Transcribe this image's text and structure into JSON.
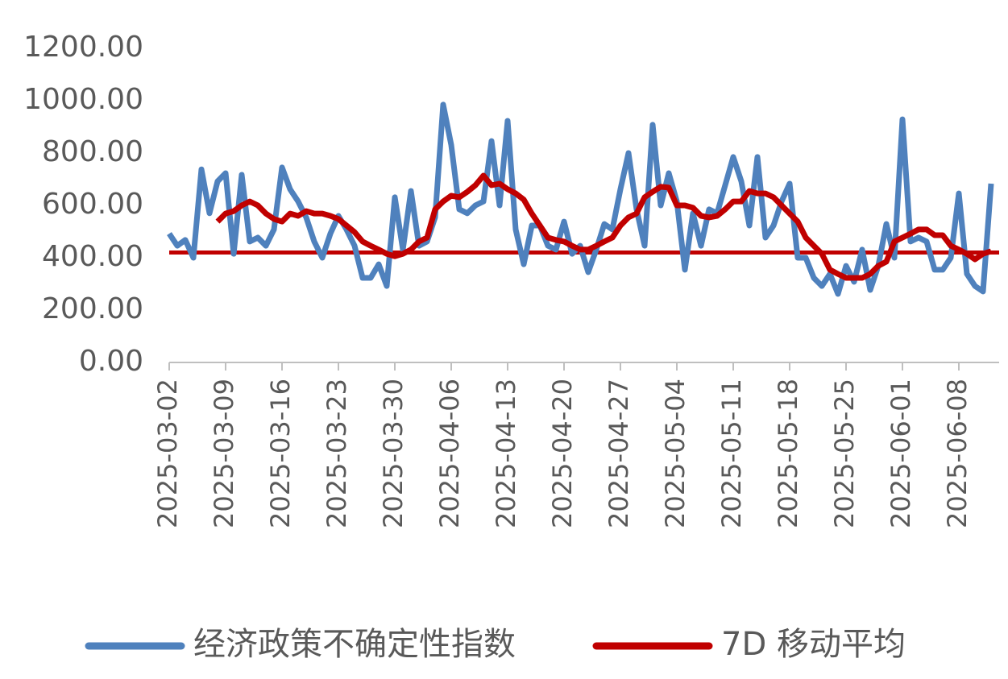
{
  "chart_data": {
    "type": "line",
    "x": [
      "2025-03-02",
      "2025-03-03",
      "2025-03-04",
      "2025-03-05",
      "2025-03-06",
      "2025-03-07",
      "2025-03-08",
      "2025-03-09",
      "2025-03-10",
      "2025-03-11",
      "2025-03-12",
      "2025-03-13",
      "2025-03-14",
      "2025-03-15",
      "2025-03-16",
      "2025-03-17",
      "2025-03-18",
      "2025-03-19",
      "2025-03-20",
      "2025-03-21",
      "2025-03-22",
      "2025-03-23",
      "2025-03-24",
      "2025-03-25",
      "2025-03-26",
      "2025-03-27",
      "2025-03-28",
      "2025-03-29",
      "2025-03-30",
      "2025-03-31",
      "2025-04-01",
      "2025-04-02",
      "2025-04-03",
      "2025-04-04",
      "2025-04-05",
      "2025-04-06",
      "2025-04-07",
      "2025-04-08",
      "2025-04-09",
      "2025-04-10",
      "2025-04-11",
      "2025-04-12",
      "2025-04-13",
      "2025-04-14",
      "2025-04-15",
      "2025-04-16",
      "2025-04-17",
      "2025-04-18",
      "2025-04-19",
      "2025-04-20",
      "2025-04-21",
      "2025-04-22",
      "2025-04-23",
      "2025-04-24",
      "2025-04-25",
      "2025-04-26",
      "2025-04-27",
      "2025-04-28",
      "2025-04-29",
      "2025-04-30",
      "2025-05-01",
      "2025-05-02",
      "2025-05-03",
      "2025-05-04",
      "2025-05-05",
      "2025-05-06",
      "2025-05-07",
      "2025-05-08",
      "2025-05-09",
      "2025-05-10",
      "2025-05-11",
      "2025-05-12",
      "2025-05-13",
      "2025-05-14",
      "2025-05-15",
      "2025-05-16",
      "2025-05-17",
      "2025-05-18",
      "2025-05-19",
      "2025-05-20",
      "2025-05-21",
      "2025-05-22",
      "2025-05-23",
      "2025-05-24",
      "2025-05-25",
      "2025-05-26",
      "2025-05-27",
      "2025-05-28",
      "2025-05-29",
      "2025-05-30",
      "2025-05-31",
      "2025-06-01",
      "2025-06-02",
      "2025-06-03",
      "2025-06-04",
      "2025-06-05",
      "2025-06-06",
      "2025-06-07",
      "2025-06-08",
      "2025-06-09",
      "2025-06-10",
      "2025-06-11",
      "2025-06-12"
    ],
    "series": [
      {
        "name": "经济政策不确定性指数",
        "color": "#4f81bd",
        "values": [
          492,
          446,
          468,
          400,
          738,
          570,
          692,
          723,
          415,
          717,
          462,
          477,
          446,
          508,
          745,
          662,
          615,
          554,
          462,
          400,
          492,
          560,
          508,
          446,
          323,
          323,
          375,
          292,
          631,
          431,
          655,
          446,
          462,
          554,
          985,
          831,
          585,
          570,
          600,
          615,
          846,
          600,
          923,
          508,
          375,
          523,
          523,
          446,
          431,
          538,
          415,
          446,
          345,
          431,
          529,
          508,
          662,
          800,
          585,
          446,
          908,
          600,
          723,
          615,
          354,
          570,
          446,
          585,
          570,
          677,
          785,
          692,
          523,
          785,
          477,
          523,
          615,
          683,
          400,
          400,
          323,
          292,
          338,
          262,
          369,
          308,
          431,
          277,
          369,
          529,
          400,
          929,
          462,
          477,
          462,
          354,
          354,
          400,
          646,
          338,
          292,
          271,
          683
        ]
      },
      {
        "name": "7D 移动平均",
        "color": "#c00000",
        "values": [
          null,
          null,
          null,
          null,
          null,
          null,
          538,
          569,
          578,
          600,
          615,
          600,
          569,
          548,
          538,
          569,
          560,
          578,
          569,
          569,
          560,
          548,
          523,
          498,
          462,
          446,
          431,
          415,
          406,
          415,
          431,
          462,
          477,
          585,
          615,
          637,
          631,
          652,
          677,
          714,
          677,
          683,
          662,
          646,
          622,
          569,
          523,
          477,
          468,
          462,
          446,
          431,
          431,
          446,
          462,
          477,
          523,
          554,
          569,
          631,
          652,
          671,
          668,
          600,
          600,
          591,
          560,
          554,
          560,
          585,
          615,
          615,
          655,
          646,
          646,
          631,
          600,
          569,
          538,
          477,
          446,
          415,
          354,
          338,
          323,
          323,
          323,
          338,
          369,
          385,
          462,
          477,
          492,
          508,
          508,
          486,
          486,
          446,
          431,
          415,
          394,
          415,
          425
        ]
      }
    ],
    "reference_line": {
      "value": 420,
      "color": "#c00000"
    },
    "xlim": [
      "2025-03-02",
      "2025-06-13"
    ],
    "xticks": [
      "2025-03-02",
      "2025-03-09",
      "2025-03-16",
      "2025-03-23",
      "2025-03-30",
      "2025-04-06",
      "2025-04-13",
      "2025-04-20",
      "2025-04-27",
      "2025-05-04",
      "2025-05-11",
      "2025-05-18",
      "2025-05-25",
      "2025-06-01",
      "2025-06-08"
    ],
    "ylim": [
      0,
      1200
    ],
    "yticks": [
      {
        "value": 0,
        "label": "0.00"
      },
      {
        "value": 200,
        "label": "200.00"
      },
      {
        "value": 400,
        "label": "400.00"
      },
      {
        "value": 600,
        "label": "600.00"
      },
      {
        "value": 800,
        "label": "800.00"
      },
      {
        "value": 1000,
        "label": "1000.00"
      },
      {
        "value": 1200,
        "label": "1200.00"
      }
    ],
    "grid": false
  }
}
